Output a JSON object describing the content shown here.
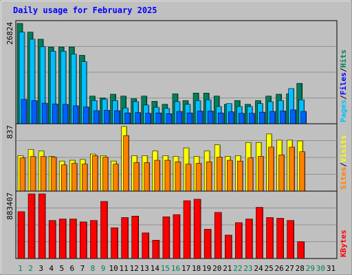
{
  "chart_data": [
    {
      "type": "bar",
      "title": "Daily usage for February 2025",
      "categories": [
        "1",
        "2",
        "3",
        "4",
        "5",
        "6",
        "7",
        "8",
        "9",
        "10",
        "11",
        "12",
        "13",
        "14",
        "15",
        "16",
        "17",
        "18",
        "19",
        "20",
        "21",
        "22",
        "23",
        "24",
        "25",
        "26",
        "27",
        "28",
        "29",
        "30",
        "31"
      ],
      "weekend_days": [
        "1",
        "2",
        "8",
        "9",
        "15",
        "16",
        "22",
        "23",
        "29",
        "30"
      ],
      "y_max_label": "26824",
      "ylim": [
        0,
        26824
      ],
      "right_labels": {
        "pages": "Pages",
        "files": "Files",
        "hits": "Hits",
        "sep": "/"
      },
      "series": [
        {
          "name": "Hits",
          "color": "#00805c",
          "values": [
            26824,
            24500,
            22600,
            20500,
            20500,
            20500,
            18300,
            7400,
            6900,
            7900,
            7400,
            6700,
            7400,
            6000,
            5200,
            8000,
            6200,
            8200,
            8200,
            7400,
            5200,
            6200,
            5200,
            6200,
            7400,
            7900,
            8000,
            10800,
            0,
            0,
            0
          ]
        },
        {
          "name": "Files",
          "color": "#00c0ff",
          "values": [
            24500,
            22600,
            20600,
            19400,
            19400,
            18600,
            16600,
            6200,
            6600,
            6200,
            4200,
            5900,
            5000,
            4400,
            4100,
            5900,
            5200,
            6200,
            6400,
            4600,
            5400,
            4600,
            4600,
            5400,
            5900,
            6200,
            9400,
            6400,
            0,
            0,
            0
          ]
        },
        {
          "name": "Pages",
          "color": "#0060ff",
          "values": [
            6500,
            6200,
            5500,
            5300,
            5200,
            4800,
            4500,
            3500,
            3600,
            3500,
            2900,
            3000,
            2800,
            2900,
            2700,
            3300,
            2900,
            3400,
            3400,
            2900,
            3200,
            2800,
            2800,
            3100,
            3300,
            3400,
            3700,
            3300,
            0,
            0,
            0
          ]
        }
      ]
    },
    {
      "type": "bar",
      "y_max_label": "837",
      "ylim": [
        0,
        837
      ],
      "right_labels": {
        "sites": "Sites",
        "visits": "Visits",
        "sep": "/"
      },
      "series": [
        {
          "name": "Visits",
          "color": "#ffff00",
          "values": [
            460,
            540,
            520,
            450,
            390,
            400,
            410,
            480,
            460,
            390,
            837,
            460,
            460,
            520,
            460,
            450,
            560,
            450,
            520,
            600,
            450,
            460,
            630,
            630,
            740,
            660,
            660,
            650,
            0,
            0,
            0
          ]
        },
        {
          "name": "Sites",
          "color": "#ff8000",
          "values": [
            430,
            450,
            450,
            440,
            340,
            360,
            350,
            460,
            440,
            350,
            720,
            370,
            370,
            400,
            400,
            380,
            350,
            360,
            380,
            440,
            400,
            390,
            430,
            450,
            570,
            470,
            570,
            510,
            0,
            0,
            0
          ]
        }
      ]
    },
    {
      "type": "bar",
      "y_max_label": "883407",
      "ylim": [
        0,
        883407
      ],
      "right_labels": {
        "kbytes": "KBytes"
      },
      "series": [
        {
          "name": "KBytes",
          "color": "#ff0000",
          "values": [
            640000,
            883407,
            883407,
            520000,
            540000,
            540000,
            500000,
            520000,
            780000,
            420000,
            560000,
            580000,
            350000,
            250000,
            570000,
            600000,
            790000,
            810000,
            400000,
            630000,
            320000,
            490000,
            540000,
            700000,
            560000,
            550000,
            520000,
            230000,
            0,
            0,
            0
          ]
        }
      ]
    }
  ]
}
